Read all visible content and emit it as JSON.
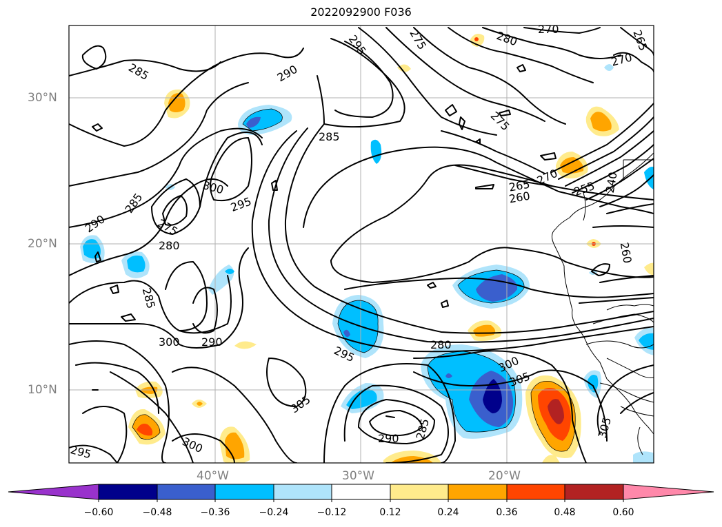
{
  "title": "2022092900 F036",
  "lat_labels": [
    "30°N",
    "20°N",
    "10°N"
  ],
  "lon_labels": [
    "40°W",
    "30°W",
    "20°W"
  ],
  "contour_labels": [
    "285",
    "290",
    "295",
    "285",
    "275",
    "280",
    "270",
    "265",
    "270",
    "275",
    "270",
    "265",
    "260",
    "255",
    "240",
    "260",
    "300",
    "295",
    "285",
    "290",
    "280",
    "275",
    "285",
    "300",
    "290",
    "295",
    "280",
    "300",
    "305",
    "305",
    "290",
    "285",
    "300",
    "295",
    "305"
  ],
  "colorbar": {
    "ticks": [
      "−0.60",
      "−0.48",
      "−0.36",
      "−0.24",
      "−0.12",
      "0.12",
      "0.24",
      "0.36",
      "0.48",
      "0.60"
    ],
    "colors": [
      "#9932cc",
      "#00008b",
      "#3a5fcd",
      "#00bfff",
      "#afe4fb",
      "#ffffff",
      "#ffeb8c",
      "#ffa500",
      "#ff4500",
      "#b22222",
      "#ff88aa"
    ]
  }
}
